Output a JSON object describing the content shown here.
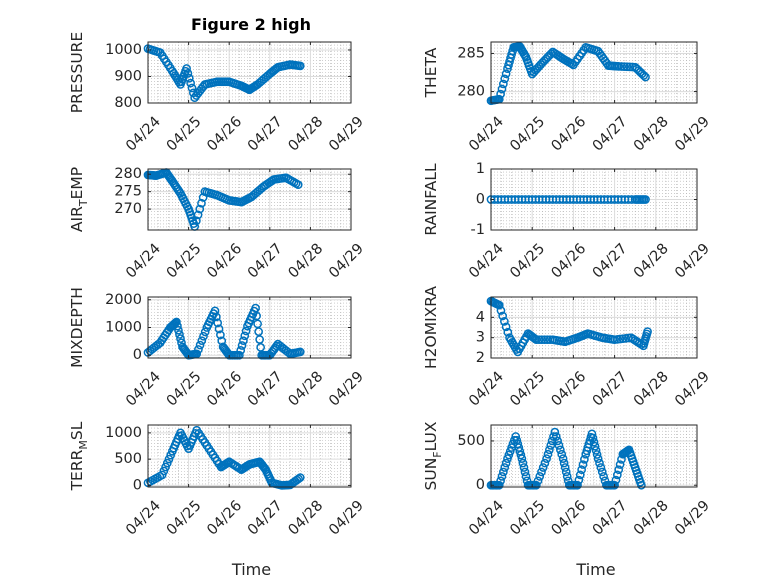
{
  "figure_title": "Figure 2 high",
  "colors": {
    "marker": "#0072BD",
    "axis": "#262626",
    "grid": "#b0b0b0"
  },
  "chart_data": [
    {
      "type": "scatter",
      "ylabel": "PRESSURE",
      "ylim": [
        800,
        1030
      ],
      "yticks": [
        800,
        900,
        1000
      ],
      "xlim": [
        0,
        5
      ],
      "xticks": [
        "04/24",
        "04/25",
        "04/26",
        "04/27",
        "04/28",
        "04/29"
      ],
      "xlabel": "",
      "series": [
        {
          "points": [
            [
              0,
              1005
            ],
            [
              0.3,
              990
            ],
            [
              0.6,
              920
            ],
            [
              0.8,
              870
            ],
            [
              0.95,
              930
            ],
            [
              1.15,
              820
            ],
            [
              1.4,
              870
            ],
            [
              1.7,
              880
            ],
            [
              2.0,
              880
            ],
            [
              2.3,
              865
            ],
            [
              2.5,
              850
            ],
            [
              2.7,
              870
            ],
            [
              3.0,
              910
            ],
            [
              3.2,
              935
            ],
            [
              3.5,
              945
            ],
            [
              3.75,
              940
            ]
          ]
        }
      ]
    },
    {
      "type": "scatter",
      "ylabel": "THETA",
      "ylim": [
        278.5,
        286.5
      ],
      "yticks": [
        280,
        285
      ],
      "xlim": [
        0,
        5
      ],
      "xticks": [
        "04/24",
        "04/25",
        "04/26",
        "04/27",
        "04/28",
        "04/29"
      ],
      "xlabel": "",
      "series": [
        {
          "points": [
            [
              0,
              278.8
            ],
            [
              0.2,
              279.0
            ],
            [
              0.4,
              283
            ],
            [
              0.55,
              285.8
            ],
            [
              0.7,
              285.9
            ],
            [
              0.85,
              284.5
            ],
            [
              1.0,
              282.3
            ],
            [
              1.25,
              283.8
            ],
            [
              1.5,
              285.2
            ],
            [
              1.75,
              284.3
            ],
            [
              2.0,
              283.5
            ],
            [
              2.3,
              285.8
            ],
            [
              2.6,
              285.3
            ],
            [
              2.85,
              283.4
            ],
            [
              3.1,
              283.3
            ],
            [
              3.5,
              283.2
            ],
            [
              3.75,
              281.9
            ]
          ]
        }
      ]
    },
    {
      "type": "scatter",
      "ylabel": "AIR_TEMP",
      "ylabel_main": "AIR",
      "ylabel_sub": "T",
      "ylabel_tail": "EMP",
      "ylim": [
        264,
        281.5
      ],
      "yticks": [
        270,
        275,
        280
      ],
      "xlim": [
        0,
        5
      ],
      "xticks": [
        "04/24",
        "04/25",
        "04/26",
        "04/27",
        "04/28",
        "04/29"
      ],
      "xlabel": "",
      "series": [
        {
          "points": [
            [
              0,
              279.8
            ],
            [
              0.2,
              279.6
            ],
            [
              0.45,
              280.5
            ],
            [
              0.6,
              278.0
            ],
            [
              0.8,
              274.5
            ],
            [
              1.0,
              270.0
            ],
            [
              1.15,
              265.0
            ],
            [
              1.4,
              275.0
            ],
            [
              1.7,
              274.0
            ],
            [
              2.0,
              272.5
            ],
            [
              2.3,
              272.0
            ],
            [
              2.55,
              273.5
            ],
            [
              2.85,
              276.5
            ],
            [
              3.1,
              278.5
            ],
            [
              3.4,
              279.0
            ],
            [
              3.7,
              277.0
            ]
          ]
        }
      ]
    },
    {
      "type": "scatter",
      "ylabel": "RAINFALL",
      "ylim": [
        -1,
        1
      ],
      "yticks": [
        -1,
        0,
        1
      ],
      "xlim": [
        0,
        5
      ],
      "xticks": [
        "04/24",
        "04/25",
        "04/26",
        "04/27",
        "04/28",
        "04/29"
      ],
      "xlabel": "",
      "series": [
        {
          "points": [
            [
              0,
              0
            ],
            [
              0.5,
              0
            ],
            [
              1.0,
              0
            ],
            [
              1.5,
              0
            ],
            [
              2.0,
              0
            ],
            [
              2.5,
              0
            ],
            [
              3.0,
              0
            ],
            [
              3.5,
              0
            ],
            [
              3.75,
              0
            ]
          ]
        }
      ]
    },
    {
      "type": "scatter",
      "ylabel": "MIXDEPTH",
      "ylim": [
        -100,
        2100
      ],
      "yticks": [
        0,
        1000,
        2000
      ],
      "xlim": [
        0,
        5
      ],
      "xticks": [
        "04/24",
        "04/25",
        "04/26",
        "04/27",
        "04/28",
        "04/29"
      ],
      "xlabel": "",
      "series": [
        {
          "points": [
            [
              0,
              100
            ],
            [
              0.3,
              450
            ],
            [
              0.55,
              1000
            ],
            [
              0.7,
              1200
            ],
            [
              0.85,
              300
            ],
            [
              1.0,
              0
            ],
            [
              1.2,
              50
            ],
            [
              1.45,
              1000
            ],
            [
              1.65,
              1600
            ],
            [
              1.85,
              300
            ],
            [
              2.0,
              0
            ],
            [
              2.25,
              0
            ],
            [
              2.45,
              1050
            ],
            [
              2.65,
              1700
            ],
            [
              2.8,
              0
            ],
            [
              3.0,
              0
            ],
            [
              3.2,
              400
            ],
            [
              3.5,
              50
            ],
            [
              3.75,
              120
            ]
          ]
        }
      ]
    },
    {
      "type": "scatter",
      "ylabel": "H2OMIXRA",
      "ylim": [
        2,
        5
      ],
      "yticks": [
        2,
        3,
        4
      ],
      "xlim": [
        0,
        5
      ],
      "xticks": [
        "04/24",
        "04/25",
        "04/26",
        "04/27",
        "04/28",
        "04/29"
      ],
      "xlabel": "",
      "series": [
        {
          "points": [
            [
              0,
              4.8
            ],
            [
              0.2,
              4.6
            ],
            [
              0.45,
              3.0
            ],
            [
              0.65,
              2.3
            ],
            [
              0.9,
              3.2
            ],
            [
              1.1,
              2.9
            ],
            [
              1.5,
              2.9
            ],
            [
              1.8,
              2.8
            ],
            [
              2.1,
              3.0
            ],
            [
              2.35,
              3.2
            ],
            [
              2.7,
              3.0
            ],
            [
              3.0,
              2.9
            ],
            [
              3.4,
              3.0
            ],
            [
              3.7,
              2.6
            ],
            [
              3.8,
              3.3
            ]
          ]
        }
      ]
    },
    {
      "type": "scatter",
      "ylabel": "TERR_MSL",
      "ylabel_main": "TERR",
      "ylabel_sub": "M",
      "ylabel_tail": "SL",
      "ylim": [
        -30,
        1150
      ],
      "yticks": [
        0,
        500,
        1000
      ],
      "xlim": [
        0,
        5
      ],
      "xticks": [
        "04/24",
        "04/25",
        "04/26",
        "04/27",
        "04/28",
        "04/29"
      ],
      "xlabel": "Time",
      "series": [
        {
          "points": [
            [
              0,
              50
            ],
            [
              0.35,
              200
            ],
            [
              0.6,
              650
            ],
            [
              0.8,
              1000
            ],
            [
              1.0,
              700
            ],
            [
              1.2,
              1050
            ],
            [
              1.5,
              700
            ],
            [
              1.8,
              350
            ],
            [
              2.0,
              450
            ],
            [
              2.3,
              300
            ],
            [
              2.5,
              400
            ],
            [
              2.75,
              450
            ],
            [
              2.9,
              300
            ],
            [
              3.05,
              50
            ],
            [
              3.3,
              0
            ],
            [
              3.5,
              10
            ],
            [
              3.75,
              150
            ]
          ]
        }
      ]
    },
    {
      "type": "scatter",
      "ylabel": "SUN_FLUX",
      "ylabel_main": "SUN",
      "ylabel_sub": "F",
      "ylabel_tail": "LUX",
      "ylim": [
        -20,
        680
      ],
      "yticks": [
        0,
        500
      ],
      "xlim": [
        0,
        5
      ],
      "xticks": [
        "04/24",
        "04/25",
        "04/26",
        "04/27",
        "04/28",
        "04/29"
      ],
      "xlabel": "Time",
      "series": [
        {
          "points": [
            [
              0,
              0
            ],
            [
              0.2,
              0
            ],
            [
              0.4,
              300
            ],
            [
              0.6,
              550
            ],
            [
              0.75,
              300
            ],
            [
              0.9,
              0
            ],
            [
              1.1,
              0
            ],
            [
              1.35,
              300
            ],
            [
              1.55,
              600
            ],
            [
              1.75,
              300
            ],
            [
              1.9,
              0
            ],
            [
              2.1,
              0
            ],
            [
              2.3,
              350
            ],
            [
              2.45,
              580
            ],
            [
              2.6,
              300
            ],
            [
              2.8,
              0
            ],
            [
              3.0,
              0
            ],
            [
              3.2,
              350
            ],
            [
              3.35,
              400
            ],
            [
              3.5,
              200
            ],
            [
              3.65,
              0
            ]
          ]
        }
      ]
    }
  ]
}
